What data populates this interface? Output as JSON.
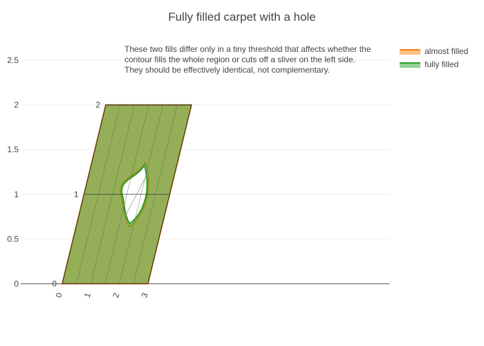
{
  "chart_data": {
    "type": "contourcarpet",
    "title": "Fully filled carpet with a hole",
    "xlabel": "",
    "ylabel": "",
    "ylim": [
      0,
      2.5
    ],
    "y_ticks": [
      "0",
      "0.5",
      "1",
      "1.5",
      "2",
      "2.5"
    ],
    "carpet": {
      "a_ticks": [
        "0",
        "1",
        "2",
        "3"
      ],
      "b_ticks": [
        "0",
        "1",
        "2"
      ],
      "a_range": [
        0,
        3
      ],
      "b_range": [
        0,
        2
      ],
      "a_gridlines": [
        0,
        0.5,
        1,
        1.5,
        2,
        2.5,
        3
      ],
      "b_gridlines": [
        0,
        1,
        2
      ]
    },
    "hole": {
      "a_center": 1.7,
      "b_center": 1.0,
      "note": ""
    },
    "series": [
      {
        "name": "almost filled",
        "color": "#ff7f0e",
        "fill": "#ff7f0e"
      },
      {
        "name": "fully filled",
        "color": "#2ca02c",
        "fill": "#2ca02c"
      }
    ],
    "annotation_lines": [
      "These two fills differ only in a tiny threshold that affects whether the",
      "contour fills the whole region or cuts off a sliver on the left side.",
      " They should be effectively identical, not complementary."
    ],
    "legend_position": "top-right",
    "grid": true
  }
}
